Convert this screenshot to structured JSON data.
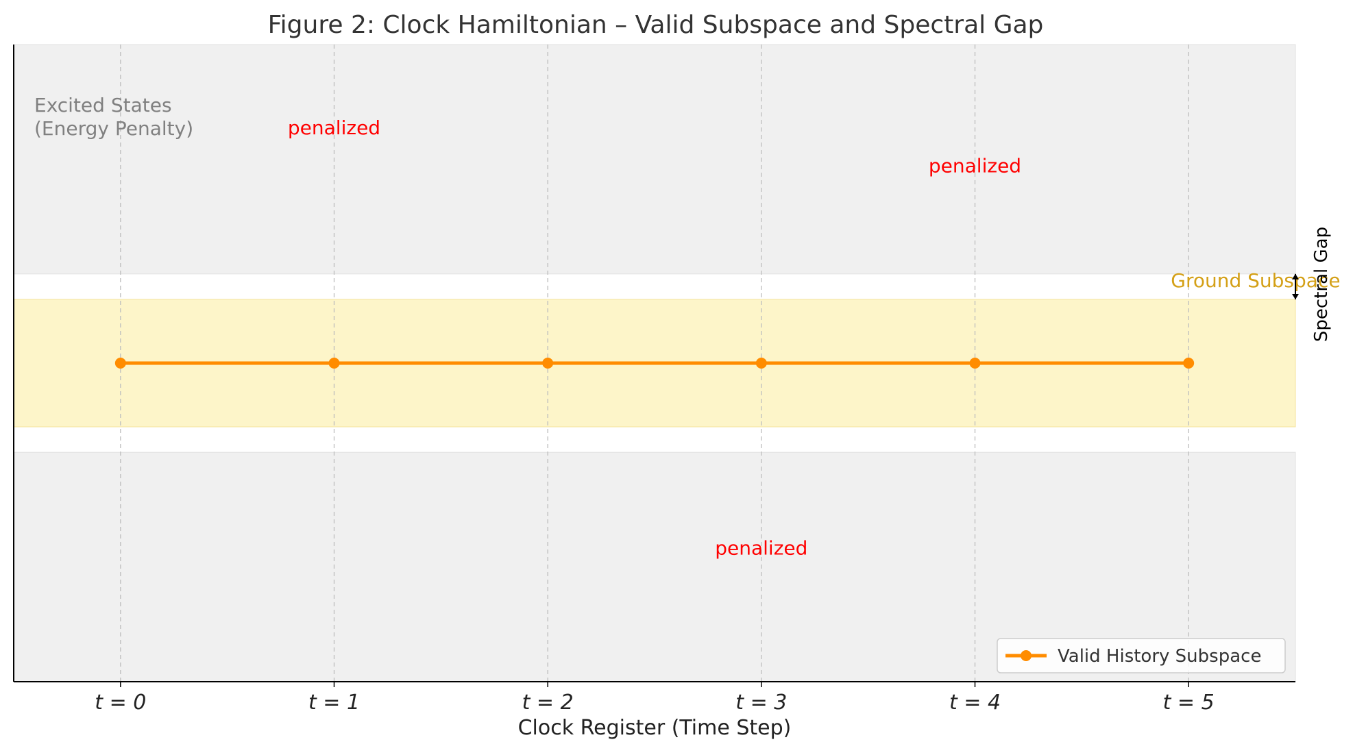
{
  "chart_data": {
    "type": "line",
    "title": "Figure 2: Clock Hamiltonian – Valid Subspace and Spectral Gap",
    "xlabel": "Clock Register (Time Step)",
    "ylabel": "",
    "x": [
      0,
      1,
      2,
      3,
      4,
      5
    ],
    "tick_labels": [
      "t = 0",
      "t = 1",
      "t = 2",
      "t = 3",
      "t = 4",
      "t = 5"
    ],
    "xlim": [
      -0.5,
      5.5
    ],
    "ylim": [
      -2.5,
      2.5
    ],
    "grid": "vertical dashed",
    "series": [
      {
        "name": "Valid History Subspace",
        "x": [
          0,
          1,
          2,
          3,
          4,
          5
        ],
        "values": [
          0,
          0,
          0,
          0,
          0,
          0
        ],
        "color": "#ff8c00"
      }
    ],
    "bands": [
      {
        "label": "Excited States\n(Energy Penalty)",
        "y_from": 0.7,
        "y_to": 2.5,
        "color": "#f0f0f0"
      },
      {
        "label": "Ground Subspace",
        "y_from": -0.5,
        "y_to": 0.5,
        "color": "#fdf5c9"
      },
      {
        "label": "",
        "y_from": -2.5,
        "y_to": -0.7,
        "color": "#f0f0f0"
      }
    ],
    "annotations": [
      {
        "text": "Excited States",
        "kind": "band-label"
      },
      {
        "text": "(Energy Penalty)",
        "kind": "band-label"
      },
      {
        "text": "penalized",
        "x": 1,
        "y": 1.85
      },
      {
        "text": "penalized",
        "x": 4,
        "y": 1.55
      },
      {
        "text": "penalized",
        "x": 3,
        "y": -1.45
      },
      {
        "text": "Ground Subspace",
        "x": 5.35,
        "y": 0.65
      }
    ],
    "gap_marker": {
      "label": "Spectral Gap",
      "x": 5.5,
      "y_from": 0.5,
      "y_to": 0.7
    },
    "legend": {
      "position": "bottom-right",
      "label": "Valid History Subspace"
    }
  }
}
